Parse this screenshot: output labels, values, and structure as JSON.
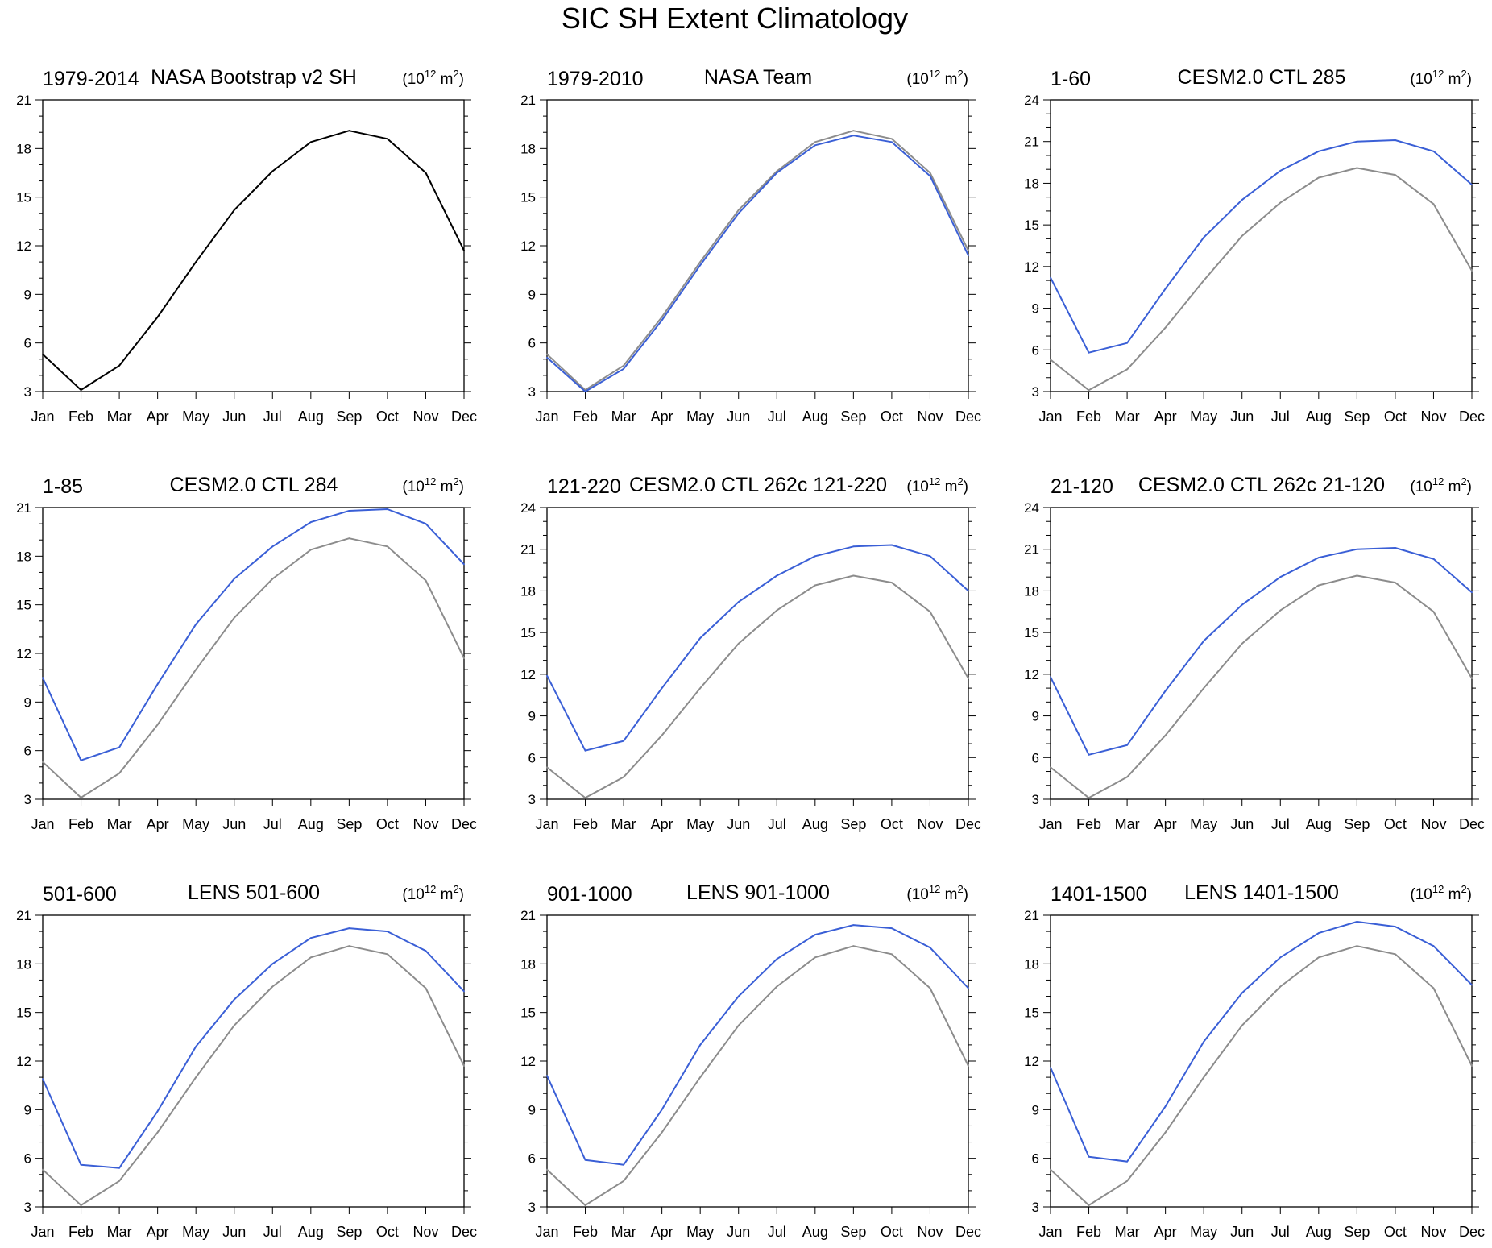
{
  "page_title": "SIC SH Extent Climatology",
  "colors": {
    "obs": "#000000",
    "ref": "#8c8c8c",
    "model": "#3a5fd6",
    "axis": "#000000"
  },
  "unit_label": {
    "base": "(10",
    "exp": "12",
    "mid": " m",
    "exp2": "2",
    "end": ")"
  },
  "months": [
    "Jan",
    "Feb",
    "Mar",
    "Apr",
    "May",
    "Jun",
    "Jul",
    "Aug",
    "Sep",
    "Oct",
    "Nov",
    "Dec"
  ],
  "chart_data": [
    {
      "type": "line",
      "left_label": "1979-2014",
      "title": "NASA Bootstrap v2 SH",
      "categories": [
        "Jan",
        "Feb",
        "Mar",
        "Apr",
        "May",
        "Jun",
        "Jul",
        "Aug",
        "Sep",
        "Oct",
        "Nov",
        "Dec"
      ],
      "ylim": [
        3,
        21
      ],
      "yticks": [
        3,
        6,
        9,
        12,
        15,
        18,
        21
      ],
      "series": [
        {
          "role": "obs",
          "values": [
            5.3,
            3.1,
            4.6,
            7.6,
            11.0,
            14.2,
            16.6,
            18.4,
            19.1,
            18.6,
            16.5,
            11.7
          ]
        }
      ]
    },
    {
      "type": "line",
      "left_label": "1979-2010",
      "title": "NASA Team",
      "categories": [
        "Jan",
        "Feb",
        "Mar",
        "Apr",
        "May",
        "Jun",
        "Jul",
        "Aug",
        "Sep",
        "Oct",
        "Nov",
        "Dec"
      ],
      "ylim": [
        3,
        21
      ],
      "yticks": [
        3,
        6,
        9,
        12,
        15,
        18,
        21
      ],
      "series": [
        {
          "role": "ref",
          "values": [
            5.3,
            3.1,
            4.6,
            7.6,
            11.0,
            14.2,
            16.6,
            18.4,
            19.1,
            18.6,
            16.5,
            11.7
          ]
        },
        {
          "role": "model",
          "values": [
            5.1,
            3.0,
            4.4,
            7.4,
            10.8,
            14.0,
            16.5,
            18.2,
            18.8,
            18.4,
            16.3,
            11.4
          ]
        }
      ]
    },
    {
      "type": "line",
      "left_label": "1-60",
      "title": "CESM2.0 CTL 285",
      "categories": [
        "Jan",
        "Feb",
        "Mar",
        "Apr",
        "May",
        "Jun",
        "Jul",
        "Aug",
        "Sep",
        "Oct",
        "Nov",
        "Dec"
      ],
      "ylim": [
        3,
        24
      ],
      "yticks": [
        3,
        6,
        9,
        12,
        15,
        18,
        21,
        24
      ],
      "series": [
        {
          "role": "ref",
          "values": [
            5.3,
            3.1,
            4.6,
            7.6,
            11.0,
            14.2,
            16.6,
            18.4,
            19.1,
            18.6,
            16.5,
            11.7
          ]
        },
        {
          "role": "model",
          "values": [
            11.2,
            5.8,
            6.5,
            10.4,
            14.1,
            16.8,
            18.9,
            20.3,
            21.0,
            21.1,
            20.3,
            17.9
          ]
        }
      ]
    },
    {
      "type": "line",
      "left_label": "1-85",
      "title": "CESM2.0 CTL 284",
      "categories": [
        "Jan",
        "Feb",
        "Mar",
        "Apr",
        "May",
        "Jun",
        "Jul",
        "Aug",
        "Sep",
        "Oct",
        "Nov",
        "Dec"
      ],
      "ylim": [
        3,
        21
      ],
      "yticks": [
        3,
        6,
        9,
        12,
        15,
        18,
        21
      ],
      "series": [
        {
          "role": "ref",
          "values": [
            5.3,
            3.1,
            4.6,
            7.6,
            11.0,
            14.2,
            16.6,
            18.4,
            19.1,
            18.6,
            16.5,
            11.7
          ]
        },
        {
          "role": "model",
          "values": [
            10.5,
            5.4,
            6.2,
            10.1,
            13.8,
            16.6,
            18.6,
            20.1,
            20.8,
            20.9,
            20.0,
            17.5
          ]
        }
      ]
    },
    {
      "type": "line",
      "left_label": "121-220",
      "title": "CESM2.0 CTL 262c 121-220",
      "categories": [
        "Jan",
        "Feb",
        "Mar",
        "Apr",
        "May",
        "Jun",
        "Jul",
        "Aug",
        "Sep",
        "Oct",
        "Nov",
        "Dec"
      ],
      "ylim": [
        3,
        24
      ],
      "yticks": [
        3,
        6,
        9,
        12,
        15,
        18,
        21,
        24
      ],
      "series": [
        {
          "role": "ref",
          "values": [
            5.3,
            3.1,
            4.6,
            7.6,
            11.0,
            14.2,
            16.6,
            18.4,
            19.1,
            18.6,
            16.5,
            11.7
          ]
        },
        {
          "role": "model",
          "values": [
            11.9,
            6.5,
            7.2,
            11.0,
            14.6,
            17.2,
            19.1,
            20.5,
            21.2,
            21.3,
            20.5,
            18.0
          ]
        }
      ]
    },
    {
      "type": "line",
      "left_label": "21-120",
      "title": "CESM2.0 CTL 262c 21-120",
      "categories": [
        "Jan",
        "Feb",
        "Mar",
        "Apr",
        "May",
        "Jun",
        "Jul",
        "Aug",
        "Sep",
        "Oct",
        "Nov",
        "Dec"
      ],
      "ylim": [
        3,
        24
      ],
      "yticks": [
        3,
        6,
        9,
        12,
        15,
        18,
        21,
        24
      ],
      "series": [
        {
          "role": "ref",
          "values": [
            5.3,
            3.1,
            4.6,
            7.6,
            11.0,
            14.2,
            16.6,
            18.4,
            19.1,
            18.6,
            16.5,
            11.7
          ]
        },
        {
          "role": "model",
          "values": [
            11.8,
            6.2,
            6.9,
            10.8,
            14.4,
            17.0,
            19.0,
            20.4,
            21.0,
            21.1,
            20.3,
            17.9
          ]
        }
      ]
    },
    {
      "type": "line",
      "left_label": "501-600",
      "title": "LENS 501-600",
      "categories": [
        "Jan",
        "Feb",
        "Mar",
        "Apr",
        "May",
        "Jun",
        "Jul",
        "Aug",
        "Sep",
        "Oct",
        "Nov",
        "Dec"
      ],
      "ylim": [
        3,
        21
      ],
      "yticks": [
        3,
        6,
        9,
        12,
        15,
        18,
        21
      ],
      "series": [
        {
          "role": "ref",
          "values": [
            5.3,
            3.1,
            4.6,
            7.6,
            11.0,
            14.2,
            16.6,
            18.4,
            19.1,
            18.6,
            16.5,
            11.7
          ]
        },
        {
          "role": "model",
          "values": [
            10.9,
            5.6,
            5.4,
            8.9,
            12.9,
            15.8,
            18.0,
            19.6,
            20.2,
            20.0,
            18.8,
            16.3
          ]
        }
      ]
    },
    {
      "type": "line",
      "left_label": "901-1000",
      "title": "LENS 901-1000",
      "categories": [
        "Jan",
        "Feb",
        "Mar",
        "Apr",
        "May",
        "Jun",
        "Jul",
        "Aug",
        "Sep",
        "Oct",
        "Nov",
        "Dec"
      ],
      "ylim": [
        3,
        21
      ],
      "yticks": [
        3,
        6,
        9,
        12,
        15,
        18,
        21
      ],
      "series": [
        {
          "role": "ref",
          "values": [
            5.3,
            3.1,
            4.6,
            7.6,
            11.0,
            14.2,
            16.6,
            18.4,
            19.1,
            18.6,
            16.5,
            11.7
          ]
        },
        {
          "role": "model",
          "values": [
            11.1,
            5.9,
            5.6,
            9.0,
            13.0,
            16.0,
            18.3,
            19.8,
            20.4,
            20.2,
            19.0,
            16.5
          ]
        }
      ]
    },
    {
      "type": "line",
      "left_label": "1401-1500",
      "title": "LENS 1401-1500",
      "categories": [
        "Jan",
        "Feb",
        "Mar",
        "Apr",
        "May",
        "Jun",
        "Jul",
        "Aug",
        "Sep",
        "Oct",
        "Nov",
        "Dec"
      ],
      "ylim": [
        3,
        21
      ],
      "yticks": [
        3,
        6,
        9,
        12,
        15,
        18,
        21
      ],
      "series": [
        {
          "role": "ref",
          "values": [
            5.3,
            3.1,
            4.6,
            7.6,
            11.0,
            14.2,
            16.6,
            18.4,
            19.1,
            18.6,
            16.5,
            11.7
          ]
        },
        {
          "role": "model",
          "values": [
            11.6,
            6.1,
            5.8,
            9.2,
            13.2,
            16.2,
            18.4,
            19.9,
            20.6,
            20.3,
            19.1,
            16.7
          ]
        }
      ]
    }
  ]
}
